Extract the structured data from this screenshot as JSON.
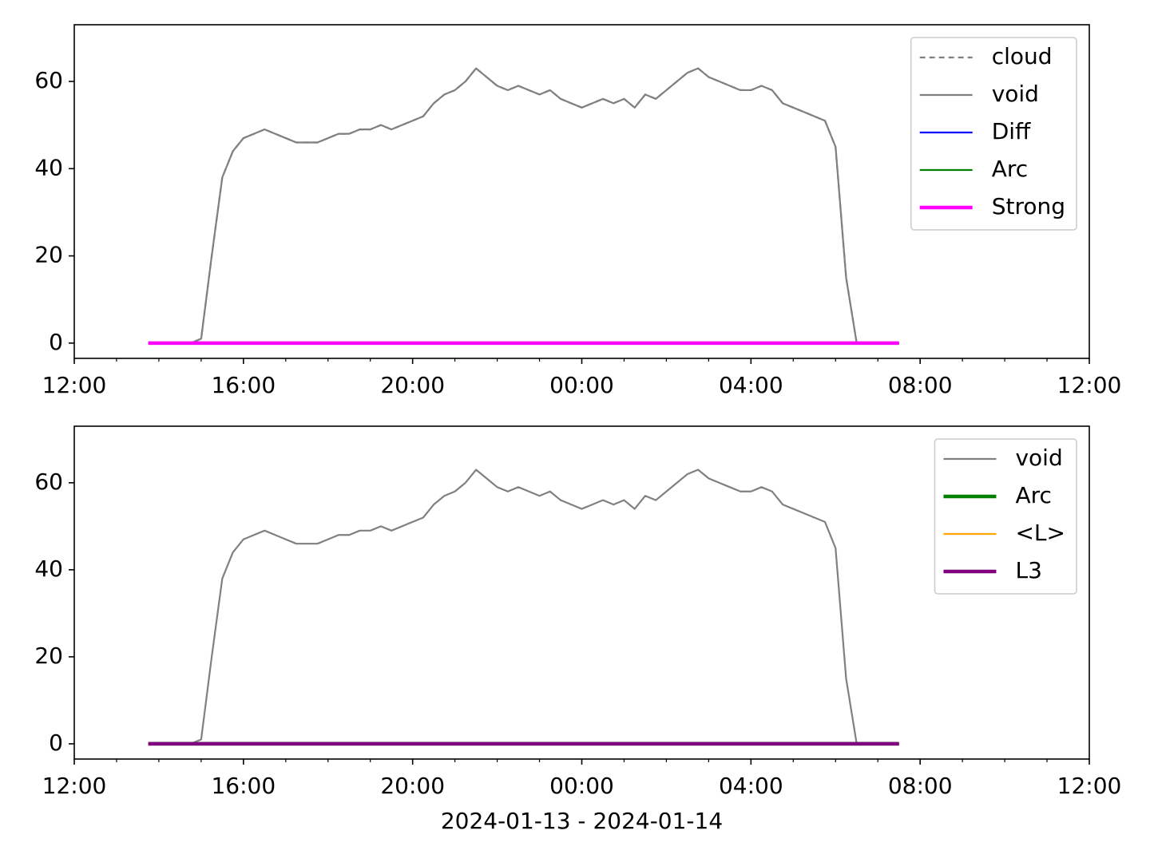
{
  "chart_data": [
    {
      "type": "line",
      "x": [
        "2024-01-13T13:45",
        "2024-01-13T14:00",
        "2024-01-13T14:15",
        "2024-01-13T14:30",
        "2024-01-13T14:45",
        "2024-01-13T15:00",
        "2024-01-13T15:15",
        "2024-01-13T15:30",
        "2024-01-13T15:45",
        "2024-01-13T16:00",
        "2024-01-13T16:15",
        "2024-01-13T16:30",
        "2024-01-13T16:45",
        "2024-01-13T17:00",
        "2024-01-13T17:15",
        "2024-01-13T17:30",
        "2024-01-13T17:45",
        "2024-01-13T18:00",
        "2024-01-13T18:15",
        "2024-01-13T18:30",
        "2024-01-13T18:45",
        "2024-01-13T19:00",
        "2024-01-13T19:15",
        "2024-01-13T19:30",
        "2024-01-13T19:45",
        "2024-01-13T20:00",
        "2024-01-13T20:15",
        "2024-01-13T20:30",
        "2024-01-13T20:45",
        "2024-01-13T21:00",
        "2024-01-13T21:15",
        "2024-01-13T21:30",
        "2024-01-13T21:45",
        "2024-01-13T22:00",
        "2024-01-13T22:15",
        "2024-01-13T22:30",
        "2024-01-13T22:45",
        "2024-01-13T23:00",
        "2024-01-13T23:15",
        "2024-01-13T23:30",
        "2024-01-13T23:45",
        "2024-01-14T00:00",
        "2024-01-14T00:15",
        "2024-01-14T00:30",
        "2024-01-14T00:45",
        "2024-01-14T01:00",
        "2024-01-14T01:15",
        "2024-01-14T01:30",
        "2024-01-14T01:45",
        "2024-01-14T02:00",
        "2024-01-14T02:15",
        "2024-01-14T02:30",
        "2024-01-14T02:45",
        "2024-01-14T03:00",
        "2024-01-14T03:15",
        "2024-01-14T03:30",
        "2024-01-14T03:45",
        "2024-01-14T04:00",
        "2024-01-14T04:15",
        "2024-01-14T04:30",
        "2024-01-14T04:45",
        "2024-01-14T05:00",
        "2024-01-14T05:15",
        "2024-01-14T05:30",
        "2024-01-14T05:45",
        "2024-01-14T06:00",
        "2024-01-14T06:15",
        "2024-01-14T06:30",
        "2024-01-14T06:45",
        "2024-01-14T07:00",
        "2024-01-14T07:15",
        "2024-01-14T07:30"
      ],
      "series": [
        {
          "name": "cloud",
          "color": "#808080",
          "linestyle": "dashed",
          "values": [
            0,
            0,
            0,
            0,
            0,
            1,
            20,
            38,
            44,
            47,
            48,
            49,
            48,
            47,
            46,
            46,
            46,
            47,
            48,
            48,
            49,
            49,
            50,
            49,
            50,
            51,
            52,
            55,
            57,
            58,
            60,
            63,
            61,
            59,
            58,
            59,
            58,
            57,
            58,
            56,
            55,
            54,
            55,
            56,
            55,
            56,
            54,
            57,
            56,
            58,
            60,
            62,
            63,
            61,
            60,
            59,
            58,
            58,
            59,
            58,
            55,
            54,
            53,
            52,
            51,
            45,
            15,
            0,
            0,
            0,
            0,
            0
          ]
        },
        {
          "name": "void",
          "color": "#808080",
          "linestyle": "solid",
          "values": [
            0,
            0,
            0,
            0,
            0,
            1,
            20,
            38,
            44,
            47,
            48,
            49,
            48,
            47,
            46,
            46,
            46,
            47,
            48,
            48,
            49,
            49,
            50,
            49,
            50,
            51,
            52,
            55,
            57,
            58,
            60,
            63,
            61,
            59,
            58,
            59,
            58,
            57,
            58,
            56,
            55,
            54,
            55,
            56,
            55,
            56,
            54,
            57,
            56,
            58,
            60,
            62,
            63,
            61,
            60,
            59,
            58,
            58,
            59,
            58,
            55,
            54,
            53,
            52,
            51,
            45,
            15,
            0,
            0,
            0,
            0,
            0
          ]
        },
        {
          "name": "Diff",
          "color": "#0000ff",
          "linestyle": "solid",
          "values": [
            0,
            0,
            0,
            0,
            0,
            0,
            0,
            0,
            0,
            0,
            0,
            0,
            0,
            0,
            0,
            0,
            0,
            0,
            0,
            0,
            0,
            0,
            0,
            0,
            0,
            0,
            0,
            0,
            0,
            0,
            0,
            0,
            0,
            0,
            0,
            0,
            0,
            0,
            0,
            0,
            0,
            0,
            0,
            0,
            0,
            0,
            0,
            0,
            0,
            0,
            0,
            0,
            0,
            0,
            0,
            0,
            0,
            0,
            0,
            0,
            0,
            0,
            0,
            0,
            0,
            0,
            0,
            0,
            0,
            0,
            0,
            0
          ]
        },
        {
          "name": "Arc",
          "color": "#008000",
          "linestyle": "solid",
          "values": [
            0,
            0,
            0,
            0,
            0,
            0,
            0,
            0,
            0,
            0,
            0,
            0,
            0,
            0,
            0,
            0,
            0,
            0,
            0,
            0,
            0,
            0,
            0,
            0,
            0,
            0,
            0,
            0,
            0,
            0,
            0,
            0,
            0,
            0,
            0,
            0,
            0,
            0,
            0,
            0,
            0,
            0,
            0,
            0,
            0,
            0,
            0,
            0,
            0,
            0,
            0,
            0,
            0,
            0,
            0,
            0,
            0,
            0,
            0,
            0,
            0,
            0,
            0,
            0,
            0,
            0,
            0,
            0,
            0,
            0,
            0,
            0
          ]
        },
        {
          "name": "Strong",
          "color": "#ff00ff",
          "linestyle": "thick",
          "values": [
            0,
            0,
            0,
            0,
            0,
            0,
            0,
            0,
            0,
            0,
            0,
            0,
            0,
            0,
            0,
            0,
            0,
            0,
            0,
            0,
            0,
            0,
            0,
            0,
            0,
            0,
            0,
            0,
            0,
            0,
            0,
            0,
            0,
            0,
            0,
            0,
            0,
            0,
            0,
            0,
            0,
            0,
            0,
            0,
            0,
            0,
            0,
            0,
            0,
            0,
            0,
            0,
            0,
            0,
            0,
            0,
            0,
            0,
            0,
            0,
            0,
            0,
            0,
            0,
            0,
            0,
            0,
            0,
            0,
            0,
            0,
            0
          ]
        }
      ],
      "xlim": [
        "2024-01-13T12:00",
        "2024-01-14T12:00"
      ],
      "xticks": [
        {
          "value": "2024-01-13T12:00",
          "label": "12:00"
        },
        {
          "value": "2024-01-13T16:00",
          "label": "16:00"
        },
        {
          "value": "2024-01-13T20:00",
          "label": "20:00"
        },
        {
          "value": "2024-01-14T00:00",
          "label": "00:00"
        },
        {
          "value": "2024-01-14T04:00",
          "label": "04:00"
        },
        {
          "value": "2024-01-14T08:00",
          "label": "08:00"
        },
        {
          "value": "2024-01-14T12:00",
          "label": "12:00"
        }
      ],
      "xminorticks": [
        "2024-01-13T13:00",
        "2024-01-13T14:00",
        "2024-01-13T15:00",
        "2024-01-13T17:00",
        "2024-01-13T18:00",
        "2024-01-13T19:00",
        "2024-01-13T21:00",
        "2024-01-13T22:00",
        "2024-01-13T23:00",
        "2024-01-14T01:00",
        "2024-01-14T02:00",
        "2024-01-14T03:00",
        "2024-01-14T05:00",
        "2024-01-14T06:00",
        "2024-01-14T07:00",
        "2024-01-14T09:00",
        "2024-01-14T10:00",
        "2024-01-14T11:00"
      ],
      "ylim": [
        -3.5,
        73
      ],
      "yticks": [
        0,
        20,
        40,
        60
      ],
      "legend": "upper right"
    },
    {
      "type": "line",
      "x": [
        "2024-01-13T13:45",
        "2024-01-13T14:00",
        "2024-01-13T14:15",
        "2024-01-13T14:30",
        "2024-01-13T14:45",
        "2024-01-13T15:00",
        "2024-01-13T15:15",
        "2024-01-13T15:30",
        "2024-01-13T15:45",
        "2024-01-13T16:00",
        "2024-01-13T16:15",
        "2024-01-13T16:30",
        "2024-01-13T16:45",
        "2024-01-13T17:00",
        "2024-01-13T17:15",
        "2024-01-13T17:30",
        "2024-01-13T17:45",
        "2024-01-13T18:00",
        "2024-01-13T18:15",
        "2024-01-13T18:30",
        "2024-01-13T18:45",
        "2024-01-13T19:00",
        "2024-01-13T19:15",
        "2024-01-13T19:30",
        "2024-01-13T19:45",
        "2024-01-13T20:00",
        "2024-01-13T20:15",
        "2024-01-13T20:30",
        "2024-01-13T20:45",
        "2024-01-13T21:00",
        "2024-01-13T21:15",
        "2024-01-13T21:30",
        "2024-01-13T21:45",
        "2024-01-13T22:00",
        "2024-01-13T22:15",
        "2024-01-13T22:30",
        "2024-01-13T22:45",
        "2024-01-13T23:00",
        "2024-01-13T23:15",
        "2024-01-13T23:30",
        "2024-01-13T23:45",
        "2024-01-14T00:00",
        "2024-01-14T00:15",
        "2024-01-14T00:30",
        "2024-01-14T00:45",
        "2024-01-14T01:00",
        "2024-01-14T01:15",
        "2024-01-14T01:30",
        "2024-01-14T01:45",
        "2024-01-14T02:00",
        "2024-01-14T02:15",
        "2024-01-14T02:30",
        "2024-01-14T02:45",
        "2024-01-14T03:00",
        "2024-01-14T03:15",
        "2024-01-14T03:30",
        "2024-01-14T03:45",
        "2024-01-14T04:00",
        "2024-01-14T04:15",
        "2024-01-14T04:30",
        "2024-01-14T04:45",
        "2024-01-14T05:00",
        "2024-01-14T05:15",
        "2024-01-14T05:30",
        "2024-01-14T05:45",
        "2024-01-14T06:00",
        "2024-01-14T06:15",
        "2024-01-14T06:30",
        "2024-01-14T06:45",
        "2024-01-14T07:00",
        "2024-01-14T07:15",
        "2024-01-14T07:30"
      ],
      "series": [
        {
          "name": "void",
          "color": "#808080",
          "linestyle": "solid",
          "values": [
            0,
            0,
            0,
            0,
            0,
            1,
            20,
            38,
            44,
            47,
            48,
            49,
            48,
            47,
            46,
            46,
            46,
            47,
            48,
            48,
            49,
            49,
            50,
            49,
            50,
            51,
            52,
            55,
            57,
            58,
            60,
            63,
            61,
            59,
            58,
            59,
            58,
            57,
            58,
            56,
            55,
            54,
            55,
            56,
            55,
            56,
            54,
            57,
            56,
            58,
            60,
            62,
            63,
            61,
            60,
            59,
            58,
            58,
            59,
            58,
            55,
            54,
            53,
            52,
            51,
            45,
            15,
            0,
            0,
            0,
            0,
            0
          ]
        },
        {
          "name": "Arc",
          "color": "#008000",
          "linestyle": "thick",
          "values": [
            0,
            0,
            0,
            0,
            0,
            0,
            0,
            0,
            0,
            0,
            0,
            0,
            0,
            0,
            0,
            0,
            0,
            0,
            0,
            0,
            0,
            0,
            0,
            0,
            0,
            0,
            0,
            0,
            0,
            0,
            0,
            0,
            0,
            0,
            0,
            0,
            0,
            0,
            0,
            0,
            0,
            0,
            0,
            0,
            0,
            0,
            0,
            0,
            0,
            0,
            0,
            0,
            0,
            0,
            0,
            0,
            0,
            0,
            0,
            0,
            0,
            0,
            0,
            0,
            0,
            0,
            0,
            0,
            0,
            0,
            0,
            0
          ]
        },
        {
          "name": "<L>",
          "color": "#ffa500",
          "linestyle": "solid",
          "values": [
            0,
            0,
            0,
            0,
            0,
            0,
            0,
            0,
            0,
            0,
            0,
            0,
            0,
            0,
            0,
            0,
            0,
            0,
            0,
            0,
            0,
            0,
            0,
            0,
            0,
            0,
            0,
            0,
            0,
            0,
            0,
            0,
            0,
            0,
            0,
            0,
            0,
            0,
            0,
            0,
            0,
            0,
            0,
            0,
            0,
            0,
            0,
            0,
            0,
            0,
            0,
            0,
            0,
            0,
            0,
            0,
            0,
            0,
            0,
            0,
            0,
            0,
            0,
            0,
            0,
            0,
            0,
            0,
            0,
            0,
            0,
            0
          ]
        },
        {
          "name": "L3",
          "color": "#800080",
          "linestyle": "thick",
          "values": [
            0,
            0,
            0,
            0,
            0,
            0,
            0,
            0,
            0,
            0,
            0,
            0,
            0,
            0,
            0,
            0,
            0,
            0,
            0,
            0,
            0,
            0,
            0,
            0,
            0,
            0,
            0,
            0,
            0,
            0,
            0,
            0,
            0,
            0,
            0,
            0,
            0,
            0,
            0,
            0,
            0,
            0,
            0,
            0,
            0,
            0,
            0,
            0,
            0,
            0,
            0,
            0,
            0,
            0,
            0,
            0,
            0,
            0,
            0,
            0,
            0,
            0,
            0,
            0,
            0,
            0,
            0,
            0,
            0,
            0,
            0,
            0
          ]
        }
      ],
      "xlabel": "2024-01-13 - 2024-01-14",
      "xlim": [
        "2024-01-13T12:00",
        "2024-01-14T12:00"
      ],
      "xticks": [
        {
          "value": "2024-01-13T12:00",
          "label": "12:00"
        },
        {
          "value": "2024-01-13T16:00",
          "label": "16:00"
        },
        {
          "value": "2024-01-13T20:00",
          "label": "20:00"
        },
        {
          "value": "2024-01-14T00:00",
          "label": "00:00"
        },
        {
          "value": "2024-01-14T04:00",
          "label": "04:00"
        },
        {
          "value": "2024-01-14T08:00",
          "label": "08:00"
        },
        {
          "value": "2024-01-14T12:00",
          "label": "12:00"
        }
      ],
      "xminorticks": [
        "2024-01-13T13:00",
        "2024-01-13T14:00",
        "2024-01-13T15:00",
        "2024-01-13T17:00",
        "2024-01-13T18:00",
        "2024-01-13T19:00",
        "2024-01-13T21:00",
        "2024-01-13T22:00",
        "2024-01-13T23:00",
        "2024-01-14T01:00",
        "2024-01-14T02:00",
        "2024-01-14T03:00",
        "2024-01-14T05:00",
        "2024-01-14T06:00",
        "2024-01-14T07:00",
        "2024-01-14T09:00",
        "2024-01-14T10:00",
        "2024-01-14T11:00"
      ],
      "ylim": [
        -3.5,
        73
      ],
      "yticks": [
        0,
        20,
        40,
        60
      ],
      "legend": "upper right"
    }
  ]
}
